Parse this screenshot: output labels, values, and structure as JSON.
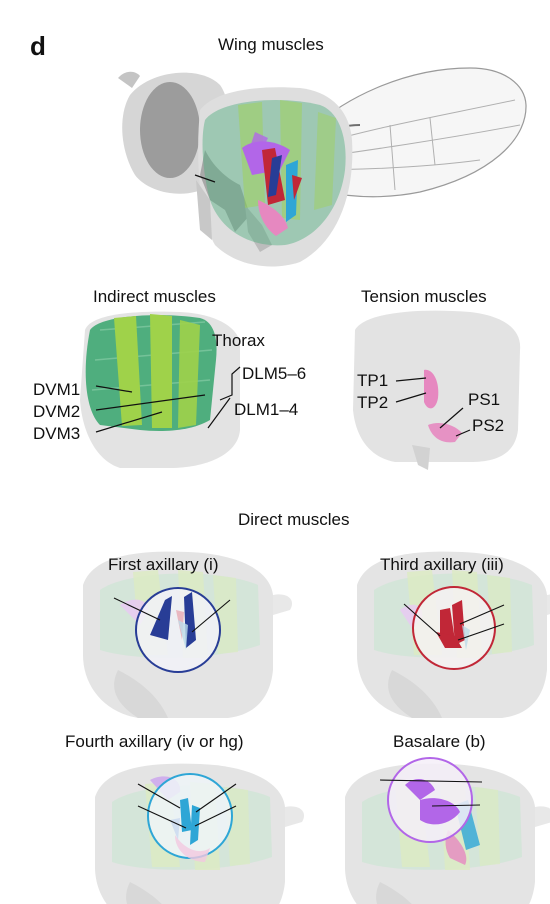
{
  "panel_letter": "d",
  "wing": {
    "title": "Wing muscles"
  },
  "indirect": {
    "title": "Indirect muscles",
    "labels": {
      "thorax": "Thorax",
      "dlm56": "DLM5–6",
      "dlm14": "DLM1–4",
      "dvm1": "DVM1",
      "dvm2": "DVM2",
      "dvm3": "DVM3"
    }
  },
  "tension": {
    "title": "Tension muscles",
    "labels": {
      "tp1": "TP1",
      "tp2": "TP2",
      "ps1": "PS1",
      "ps2": "PS2"
    }
  },
  "direct": {
    "title": "Direct muscles",
    "first": "First axillary (i)",
    "third": "Third axillary (iii)",
    "fourth": "Fourth axillary (iv or hg)",
    "basalare": "Basalare (b)"
  },
  "colors": {
    "dlm": "#4fae7e",
    "dvm": "#9fd24a",
    "first_axillary": "#283d96",
    "third_axillary": "#c12737",
    "fourth_axillary": "#2ea6d6",
    "basalare": "#b266e8",
    "tension": "#e688c0",
    "body": "#e2e2e2"
  }
}
